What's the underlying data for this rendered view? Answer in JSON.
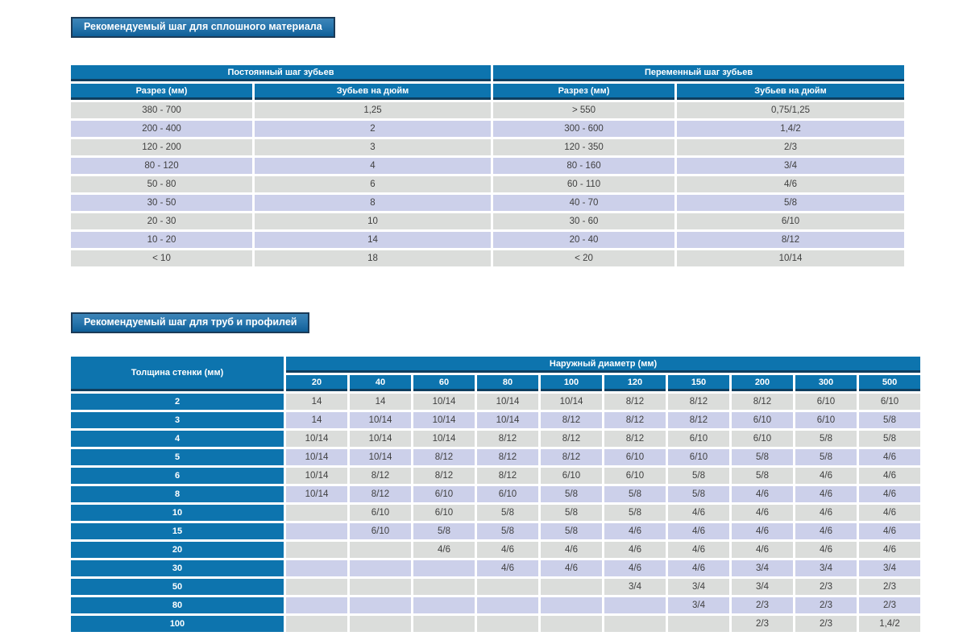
{
  "colors": {
    "header_blue": "#0d74ae",
    "header_dark_edge": "#0f3e5f",
    "banner_border": "#1b3a57",
    "banner_gradient_top": "#3d85b8",
    "banner_gradient_bottom": "#0f5f98",
    "row_gray": "#dbdddb",
    "row_lavender": "#ccd0ea",
    "cell_text": "#3f3f3f"
  },
  "section1": {
    "title": "Рекомендуемый шаг для сплошного материала",
    "table": {
      "groups": [
        "Постоянный шаг зубьев",
        "Переменный шаг зубьев"
      ],
      "columns": [
        "Разрез (мм)",
        "Зубьев на дюйм",
        "Разрез (мм)",
        "Зубьев на дюйм"
      ],
      "rows": [
        [
          "380 - 700",
          "1,25",
          "> 550",
          "0,75/1,25"
        ],
        [
          "200 - 400",
          "2",
          "300 - 600",
          "1,4/2"
        ],
        [
          "120 - 200",
          "3",
          "120 - 350",
          "2/3"
        ],
        [
          "80 - 120",
          "4",
          "80 - 160",
          "3/4"
        ],
        [
          "50 - 80",
          "6",
          "60 - 110",
          "4/6"
        ],
        [
          "30 - 50",
          "8",
          "40 - 70",
          "5/8"
        ],
        [
          "20 - 30",
          "10",
          "30 - 60",
          "6/10"
        ],
        [
          "10 - 20",
          "14",
          "20 - 40",
          "8/12"
        ],
        [
          "< 10",
          "18",
          "< 20",
          "10/14"
        ]
      ]
    }
  },
  "section2": {
    "title": "Рекомендуемый шаг для труб и профилей",
    "table": {
      "row_header": "Толщина стенки (мм)",
      "group_header": "Наружный диаметр (мм)",
      "diameters": [
        "20",
        "40",
        "60",
        "80",
        "100",
        "120",
        "150",
        "200",
        "300",
        "500"
      ],
      "rows": [
        {
          "thickness": "2",
          "values": [
            "14",
            "14",
            "10/14",
            "10/14",
            "10/14",
            "8/12",
            "8/12",
            "8/12",
            "6/10",
            "6/10"
          ]
        },
        {
          "thickness": "3",
          "values": [
            "14",
            "10/14",
            "10/14",
            "10/14",
            "8/12",
            "8/12",
            "8/12",
            "6/10",
            "6/10",
            "5/8"
          ]
        },
        {
          "thickness": "4",
          "values": [
            "10/14",
            "10/14",
            "10/14",
            "8/12",
            "8/12",
            "8/12",
            "6/10",
            "6/10",
            "5/8",
            "5/8"
          ]
        },
        {
          "thickness": "5",
          "values": [
            "10/14",
            "10/14",
            "8/12",
            "8/12",
            "8/12",
            "6/10",
            "6/10",
            "5/8",
            "5/8",
            "4/6"
          ]
        },
        {
          "thickness": "6",
          "values": [
            "10/14",
            "8/12",
            "8/12",
            "8/12",
            "6/10",
            "6/10",
            "5/8",
            "5/8",
            "4/6",
            "4/6"
          ]
        },
        {
          "thickness": "8",
          "values": [
            "10/14",
            "8/12",
            "6/10",
            "6/10",
            "5/8",
            "5/8",
            "5/8",
            "4/6",
            "4/6",
            "4/6"
          ]
        },
        {
          "thickness": "10",
          "values": [
            "",
            "6/10",
            "6/10",
            "5/8",
            "5/8",
            "5/8",
            "4/6",
            "4/6",
            "4/6",
            "4/6"
          ]
        },
        {
          "thickness": "15",
          "values": [
            "",
            "6/10",
            "5/8",
            "5/8",
            "5/8",
            "4/6",
            "4/6",
            "4/6",
            "4/6",
            "4/6"
          ]
        },
        {
          "thickness": "20",
          "values": [
            "",
            "",
            "4/6",
            "4/6",
            "4/6",
            "4/6",
            "4/6",
            "4/6",
            "4/6",
            "4/6"
          ]
        },
        {
          "thickness": "30",
          "values": [
            "",
            "",
            "",
            "4/6",
            "4/6",
            "4/6",
            "4/6",
            "3/4",
            "3/4",
            "3/4"
          ]
        },
        {
          "thickness": "50",
          "values": [
            "",
            "",
            "",
            "",
            "",
            "3/4",
            "3/4",
            "3/4",
            "2/3",
            "2/3"
          ]
        },
        {
          "thickness": "80",
          "values": [
            "",
            "",
            "",
            "",
            "",
            "",
            "3/4",
            "2/3",
            "2/3",
            "2/3"
          ]
        },
        {
          "thickness": "100",
          "values": [
            "",
            "",
            "",
            "",
            "",
            "",
            "",
            "2/3",
            "2/3",
            "1,4/2"
          ]
        }
      ]
    }
  }
}
